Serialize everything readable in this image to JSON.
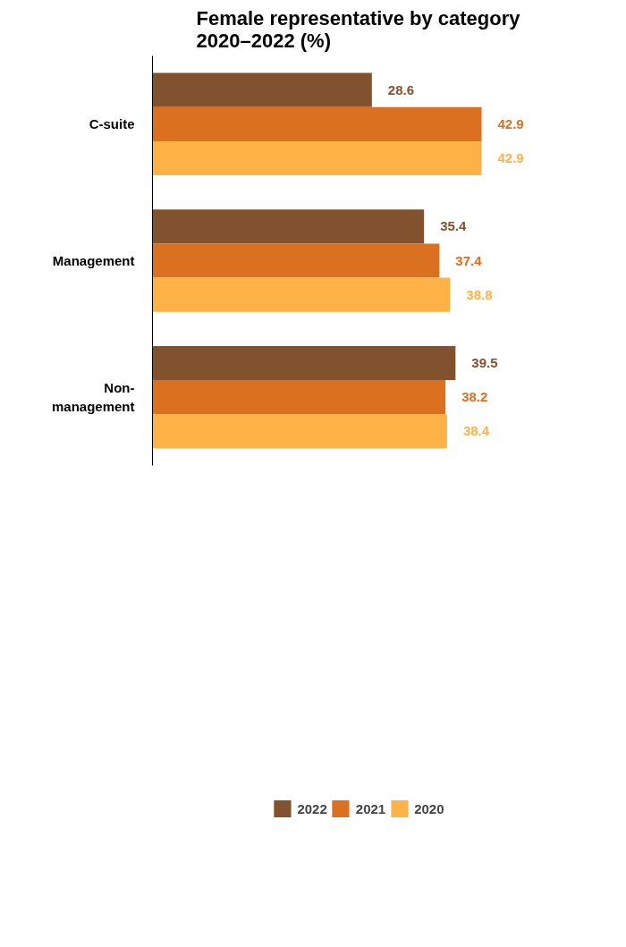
{
  "chart_data": {
    "type": "bar",
    "orientation": "horizontal",
    "title": "Female representative by category 2020–2022 (%)",
    "categories": [
      "C-suite",
      "Management",
      "Non-\nmanagement"
    ],
    "series": [
      {
        "name": "2022",
        "color": "#82512e",
        "values": [
          28.6,
          35.4,
          39.5
        ]
      },
      {
        "name": "2021",
        "color": "#db7020",
        "values": [
          42.9,
          37.4,
          38.2
        ]
      },
      {
        "name": "2020",
        "color": "#ffb347",
        "values": [
          42.9,
          38.8,
          38.4
        ]
      }
    ],
    "data_labels": true,
    "tick_labels": "y",
    "grid": false,
    "legend": "bottom"
  }
}
